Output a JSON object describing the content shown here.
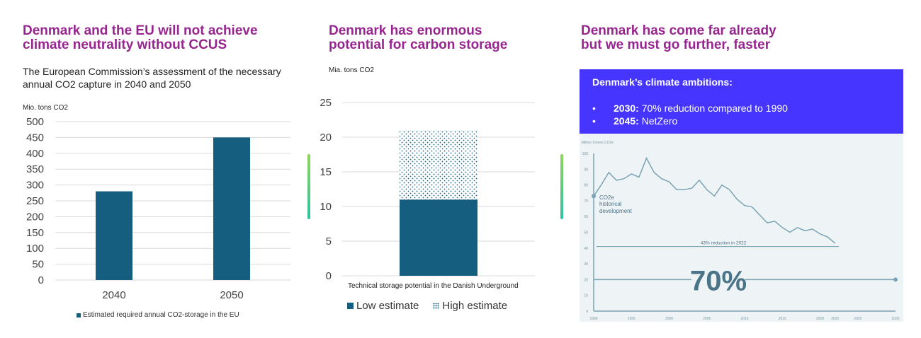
{
  "left": {
    "title_line1": "Denmark and the EU will not achieve",
    "title_line2": "climate neutrality without CCUS",
    "subtitle_line1": "The European Commission’s assessment of the necessary",
    "subtitle_line2": "annual CO2 capture in 2040 and 2050",
    "unit": "Mio. tons CO2",
    "legend": "Estimated required annual CO2-storage in the EU"
  },
  "middle": {
    "title_line1": "Denmark has enormous",
    "title_line2": "potential for carbon storage",
    "unit": "Mia. tons CO2",
    "xlabel": "Technical storage potential in the Danish Underground",
    "legend_low": "Low estimate",
    "legend_high": "High estimate"
  },
  "right": {
    "title_line1": "Denmark has come far already",
    "title_line2": "but we must go further, faster",
    "banner_title": "Denmark’s climate ambitions:",
    "item1_bold": "2030:",
    "item1_text": " 70% reduction compared to 1990",
    "item2_bold": "2045:",
    "item2_text": " NetZero",
    "unit": "Million tonnes CO2e",
    "series_label_1": "CO2e",
    "series_label_2": "historical",
    "series_label_3": "development",
    "reduction_label": "43% reduction in 2022",
    "target_label": "70%"
  },
  "colors": {
    "title": "#97258f",
    "bar": "#155e80",
    "banner": "#4535ff",
    "line": "#7aa3b3",
    "line_panel_bg": "#eef3f5"
  },
  "chart_data": [
    {
      "type": "bar",
      "categories": [
        "2040",
        "2050"
      ],
      "series": [
        {
          "name": "Estimated required annual CO2-storage in the EU",
          "values": [
            280,
            450
          ]
        }
      ],
      "ylabel": "Mio. tons CO2",
      "ylim": [
        0,
        500
      ],
      "yticks": [
        0,
        50,
        100,
        150,
        200,
        250,
        300,
        350,
        400,
        450,
        500
      ],
      "grid": true,
      "legend": "bottom"
    },
    {
      "type": "bar",
      "stacked": true,
      "categories": [
        "Technical storage potential in the Danish Underground"
      ],
      "series": [
        {
          "name": "Low estimate",
          "values": [
            11
          ]
        },
        {
          "name": "High estimate",
          "values": [
            10
          ]
        }
      ],
      "ylabel": "Mia. tons CO2",
      "ylim": [
        0,
        25
      ],
      "yticks": [
        0,
        5,
        10,
        15,
        20,
        25
      ],
      "grid": true,
      "legend": "bottom"
    },
    {
      "type": "line",
      "ylabel": "Million tonnes CO2e",
      "ylim": [
        0,
        100
      ],
      "yticks": [
        0,
        10,
        20,
        30,
        40,
        50,
        60,
        70,
        80,
        90,
        100
      ],
      "xticks": [
        1990,
        1995,
        2000,
        2005,
        2010,
        2015,
        2020,
        2022,
        2025,
        2030
      ],
      "series": [
        {
          "name": "CO2e historical development",
          "x": [
            1990,
            1991,
            1992,
            1993,
            1994,
            1995,
            1996,
            1997,
            1998,
            1999,
            2000,
            2001,
            2002,
            2003,
            2004,
            2005,
            2006,
            2007,
            2008,
            2009,
            2010,
            2011,
            2012,
            2013,
            2014,
            2015,
            2016,
            2017,
            2018,
            2019,
            2020,
            2021,
            2022
          ],
          "y": [
            73,
            80,
            88,
            83,
            84,
            87,
            85,
            97,
            88,
            84,
            82,
            77,
            77,
            78,
            83,
            77,
            73,
            80,
            77,
            71,
            67,
            66,
            61,
            56,
            57,
            53,
            50,
            53,
            51,
            52,
            49,
            47,
            43
          ]
        }
      ],
      "reference_lines": [
        {
          "label": "43% reduction in 2022",
          "y": 41
        },
        {
          "label": "70%",
          "y": 20
        }
      ],
      "grid": false
    }
  ]
}
